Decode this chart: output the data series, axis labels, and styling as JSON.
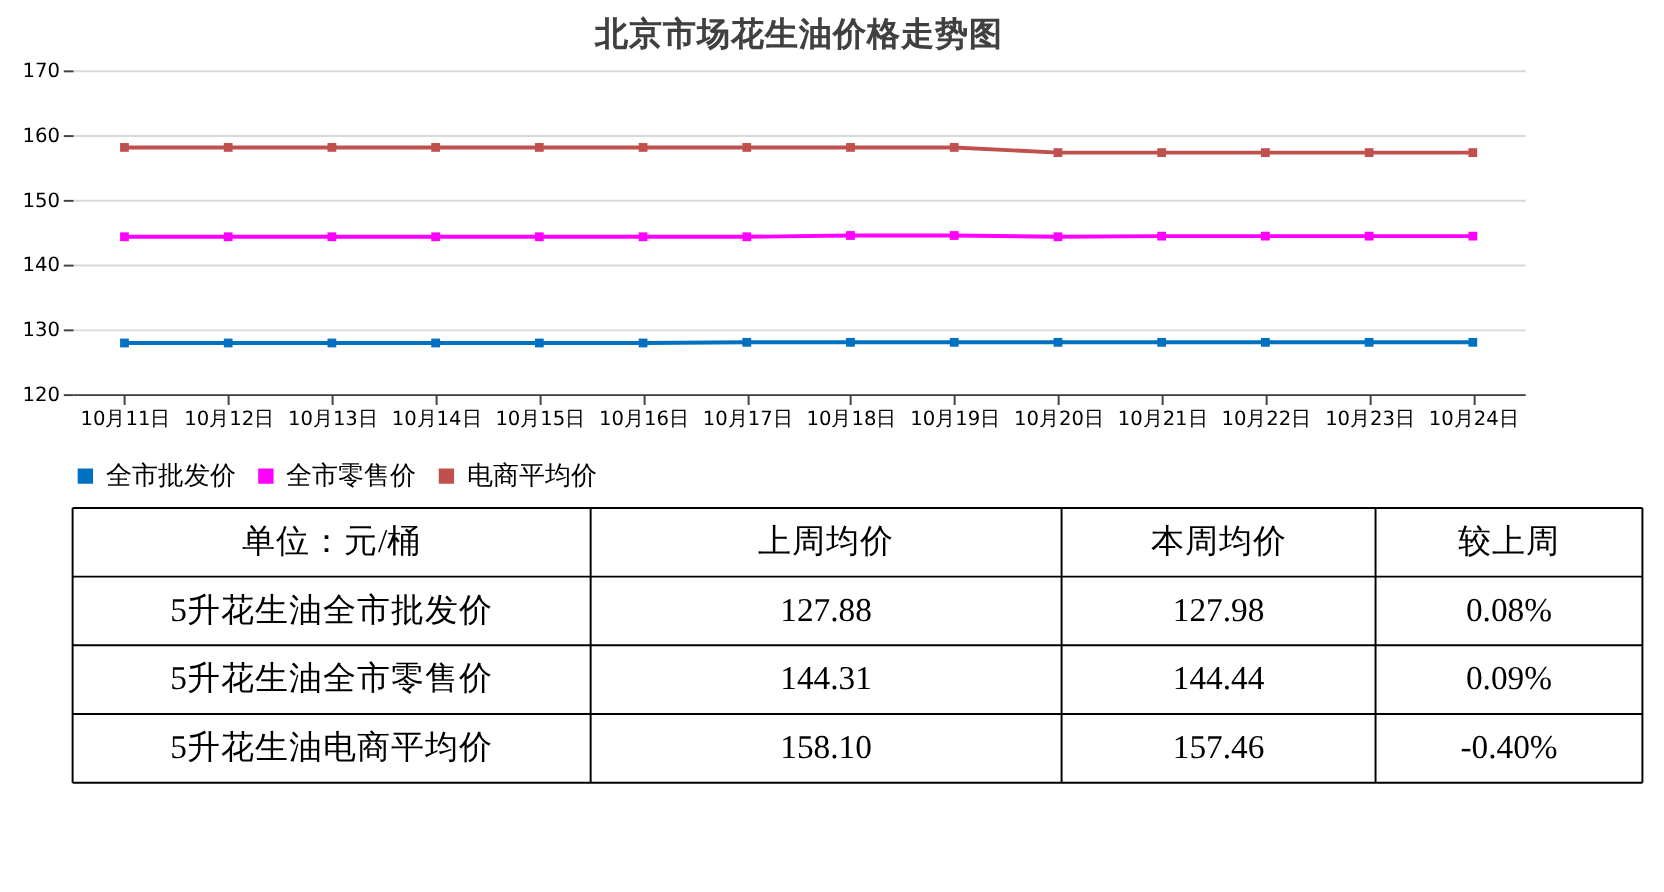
{
  "chart_data": {
    "type": "line",
    "title": "北京市场花生油价格走势图",
    "categories": [
      "10月11日",
      "10月12日",
      "10月13日",
      "10月14日",
      "10月15日",
      "10月16日",
      "10月17日",
      "10月18日",
      "10月19日",
      "10月20日",
      "10月21日",
      "10月22日",
      "10月23日",
      "10月24日"
    ],
    "series": [
      {
        "name": "全市批发价",
        "color": "#0070c0",
        "values": [
          127.9,
          127.9,
          127.9,
          127.9,
          127.9,
          127.9,
          128.0,
          128.0,
          128.0,
          128.0,
          128.0,
          128.0,
          128.0,
          128.0
        ]
      },
      {
        "name": "全市零售价",
        "color": "#ff00ff",
        "values": [
          144.3,
          144.3,
          144.3,
          144.3,
          144.3,
          144.3,
          144.3,
          144.5,
          144.5,
          144.3,
          144.4,
          144.4,
          144.4,
          144.4
        ]
      },
      {
        "name": "电商平均价",
        "color": "#c0504d",
        "values": [
          158.1,
          158.1,
          158.1,
          158.1,
          158.1,
          158.1,
          158.1,
          158.1,
          158.1,
          157.3,
          157.3,
          157.3,
          157.3,
          157.3
        ]
      }
    ],
    "ylim": [
      120,
      170
    ],
    "yticks": [
      120,
      130,
      140,
      150,
      160,
      170
    ],
    "grid": "y",
    "legend": "bottom",
    "marker": "square",
    "line_style": "solid",
    "annotations": [
      "单位：元/桶",
      "上周均价",
      "本周均价",
      "较上周",
      "5升花生油全市批发价",
      "127.88",
      "127.98",
      "0.08%",
      "5升花生油全市零售价",
      "144.31",
      "144.44",
      "0.09%",
      "5升花生油电商平均价",
      "158.10",
      "157.46",
      "-0.40%"
    ]
  }
}
